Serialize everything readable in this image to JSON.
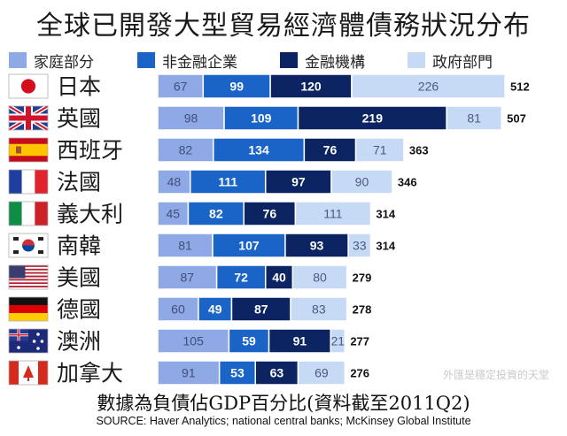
{
  "title": "全球已開發大型貿易經濟體債務狀況分布",
  "colors": {
    "household": "#8fa8e6",
    "corporate": "#1a64c8",
    "financial": "#0c2462",
    "government": "#c6d9f5",
    "separator": "#ffffff"
  },
  "chart_data": {
    "type": "bar",
    "orientation": "horizontal",
    "stacked": true,
    "categories": [
      "日本",
      "英國",
      "西班牙",
      "法國",
      "義大利",
      "南韓",
      "美國",
      "德國",
      "澳洲",
      "加拿大"
    ],
    "flag_icons": [
      "japan-flag-icon",
      "uk-flag-icon",
      "spain-flag-icon",
      "france-flag-icon",
      "italy-flag-icon",
      "south-korea-flag-icon",
      "usa-flag-icon",
      "germany-flag-icon",
      "australia-flag-icon",
      "canada-flag-icon"
    ],
    "series": [
      {
        "name": "家庭部分",
        "values": [
          67,
          98,
          82,
          48,
          45,
          81,
          87,
          60,
          105,
          91
        ]
      },
      {
        "name": "非金融企業",
        "values": [
          99,
          109,
          134,
          111,
          82,
          107,
          72,
          49,
          59,
          53
        ]
      },
      {
        "name": "金融機構",
        "values": [
          120,
          219,
          76,
          97,
          76,
          93,
          40,
          87,
          91,
          63
        ]
      },
      {
        "name": "政府部門",
        "values": [
          226,
          81,
          71,
          90,
          111,
          33,
          80,
          83,
          21,
          69
        ]
      }
    ],
    "totals": [
      512,
      507,
      363,
      346,
      314,
      314,
      279,
      278,
      277,
      276
    ],
    "xlim": [
      0,
      512
    ],
    "legend_position": "top",
    "grid": false
  },
  "footnote": "數據為負債佔GDP百分比(資料截至2011Q2)",
  "source": "SOURCE: Haver Analytics; national central banks; McKinsey Global Institute",
  "watermark": "外匯是穩定投資的天堂"
}
